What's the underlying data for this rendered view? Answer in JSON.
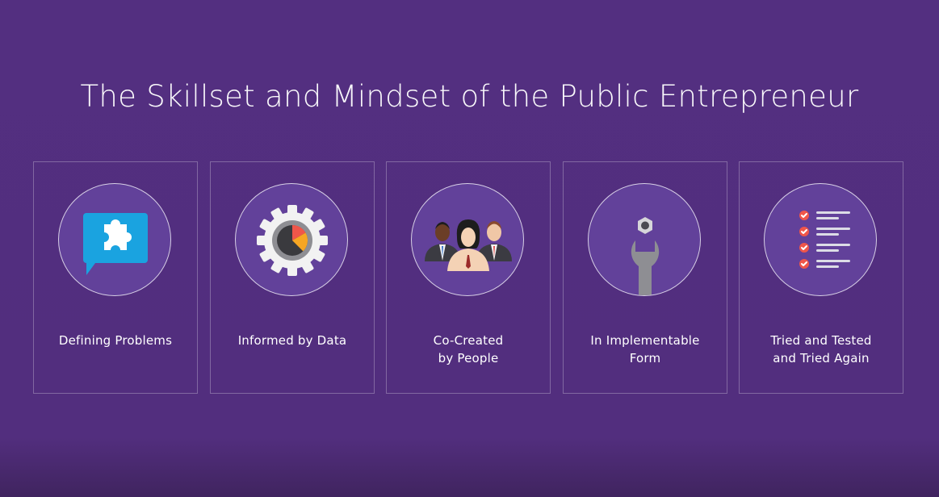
{
  "title": "The Skillset and Mindset of the Public Entrepreneur",
  "cards": [
    {
      "icon": "puzzle-speech-bubble-icon",
      "lines": [
        "Defining Problems"
      ]
    },
    {
      "icon": "gear-pie-chart-icon",
      "lines": [
        "Informed by Data"
      ]
    },
    {
      "icon": "people-group-icon",
      "lines": [
        "Co-Created",
        "by People"
      ]
    },
    {
      "icon": "wrench-bolt-icon",
      "lines": [
        "In Implementable",
        "Form"
      ]
    },
    {
      "icon": "checklist-icon",
      "lines": [
        "Tried and Tested",
        "and Tried Again"
      ]
    }
  ],
  "colors": {
    "background": "#532f80",
    "circle_fill": "#62419a",
    "accent_blue": "#1aa3e0",
    "accent_red": "#f0564a",
    "accent_orange": "#f6a623",
    "icon_gray": "#8e8e93"
  }
}
